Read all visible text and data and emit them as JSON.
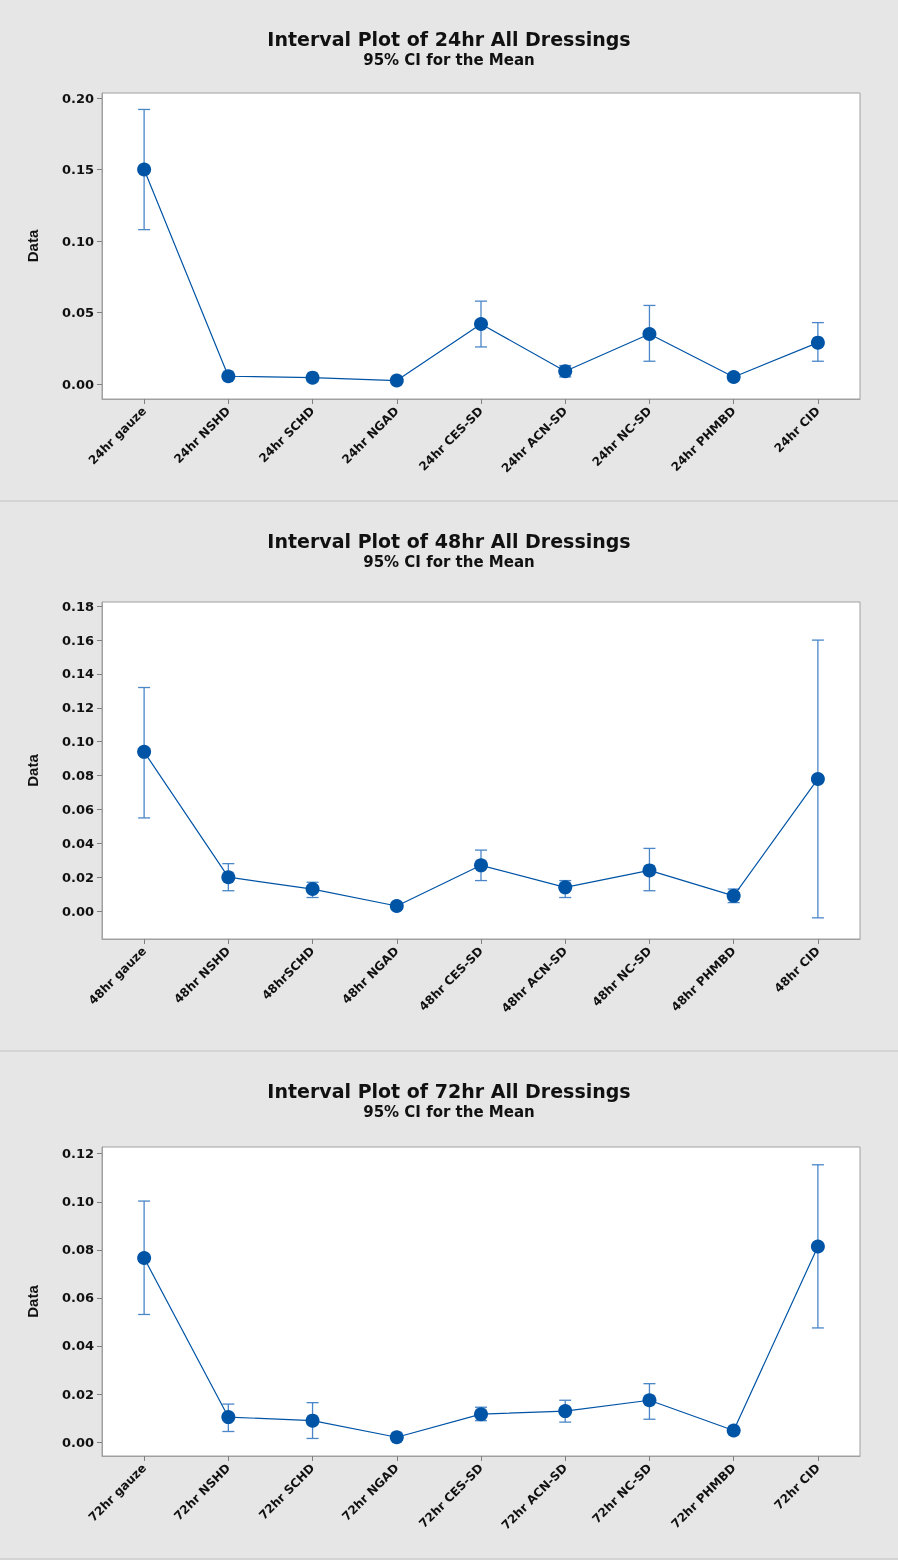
{
  "chart_data": [
    {
      "type": "line",
      "title": "Interval Plot of 24hr All Dressings",
      "subtitle": "95% CI for the Mean",
      "ylabel": "Data",
      "categories": [
        "24hr gauze",
        "24hr NSHD",
        "24hr SCHD",
        "24hr NGAD",
        "24hr CES-SD",
        "24hr ACN-SD",
        "24hr NC-SD",
        "24hr PHMBD",
        "24hr CID"
      ],
      "series": [
        {
          "color": "#0054a6",
          "values": [
            0.15,
            0.0055,
            0.0045,
            0.0025,
            0.042,
            0.009,
            0.035,
            0.005,
            0.029
          ],
          "errors": [
            [
              0.108,
              0.192
            ],
            null,
            null,
            null,
            [
              0.026,
              0.058
            ],
            [
              0.005,
              0.013
            ],
            [
              0.016,
              0.055
            ],
            null,
            [
              0.016,
              0.043
            ]
          ]
        }
      ],
      "ylim": [
        -0.0104,
        0.2035
      ],
      "yticks": [
        {
          "value": 0,
          "label": "0.00"
        },
        {
          "value": 0.05,
          "label": "0.05"
        },
        {
          "value": 0.1,
          "label": "0.10"
        },
        {
          "value": 0.15,
          "label": "0.15"
        },
        {
          "value": 0.2,
          "label": "0.20"
        }
      ],
      "marker": "circle",
      "grid": false
    },
    {
      "type": "line",
      "title": "Interval Plot of 48hr All Dressings",
      "subtitle": "95% CI for the Mean",
      "ylabel": "Data",
      "categories": [
        "48hr gauze",
        "48hr NSHD",
        "48hrSCHD",
        "48hr NGAD",
        "48hr CES-SD",
        "48hr ACN-SD",
        "48hr NC-SD",
        "48hr PHMBD",
        "48hr CID"
      ],
      "series": [
        {
          "color": "#0054a6",
          "values": [
            0.094,
            0.02,
            0.013,
            0.003,
            0.027,
            0.014,
            0.024,
            0.009,
            0.078
          ],
          "errors": [
            [
              0.055,
              0.132
            ],
            [
              0.012,
              0.028
            ],
            [
              0.008,
              0.017
            ],
            null,
            [
              0.018,
              0.036
            ],
            [
              0.008,
              0.018
            ],
            [
              0.012,
              0.037
            ],
            [
              0.005,
              0.013
            ],
            [
              -0.004,
              0.16
            ]
          ]
        }
      ],
      "ylim": [
        -0.0165,
        0.1825
      ],
      "yticks": [
        {
          "value": 0,
          "label": "0.00"
        },
        {
          "value": 0.02,
          "label": "0.02"
        },
        {
          "value": 0.04,
          "label": "0.04"
        },
        {
          "value": 0.06,
          "label": "0.06"
        },
        {
          "value": 0.08,
          "label": "0.08"
        },
        {
          "value": 0.1,
          "label": "0.10"
        },
        {
          "value": 0.12,
          "label": "0.12"
        },
        {
          "value": 0.14,
          "label": "0.14"
        },
        {
          "value": 0.16,
          "label": "0.16"
        },
        {
          "value": 0.18,
          "label": "0.18"
        }
      ],
      "marker": "circle",
      "grid": false
    },
    {
      "type": "line",
      "title": "Interval Plot of 72hr All Dressings",
      "subtitle": "95% CI for the Mean",
      "ylabel": "Data",
      "categories": [
        "72hr gauze",
        "72hr NSHD",
        "72hr SCHD",
        "72hr NGAD",
        "72hr CES-SD",
        "72hr ACN-SD",
        "72hr NC-SD",
        "72hr PHMBD",
        "72hr CID"
      ],
      "series": [
        {
          "color": "#0054a6",
          "values": [
            0.0766,
            0.0104,
            0.0089,
            0.002,
            0.0116,
            0.0129,
            0.0174,
            0.0048,
            0.0814
          ],
          "errors": [
            [
              0.0531,
              0.1003
            ],
            [
              0.0044,
              0.0158
            ],
            [
              0.0015,
              0.0164
            ],
            null,
            [
              0.0089,
              0.0145
            ],
            [
              0.0083,
              0.0174
            ],
            [
              0.0095,
              0.0243
            ],
            null,
            [
              0.0475,
              0.1154
            ]
          ]
        }
      ],
      "ylim": [
        -0.0058,
        0.1228
      ],
      "yticks": [
        {
          "value": 0,
          "label": "0.00"
        },
        {
          "value": 0.02,
          "label": "0.02"
        },
        {
          "value": 0.04,
          "label": "0.04"
        },
        {
          "value": 0.06,
          "label": "0.06"
        },
        {
          "value": 0.08,
          "label": "0.08"
        },
        {
          "value": 0.1,
          "label": "0.10"
        },
        {
          "value": 0.12,
          "label": "0.12"
        }
      ],
      "marker": "circle",
      "grid": false
    }
  ]
}
